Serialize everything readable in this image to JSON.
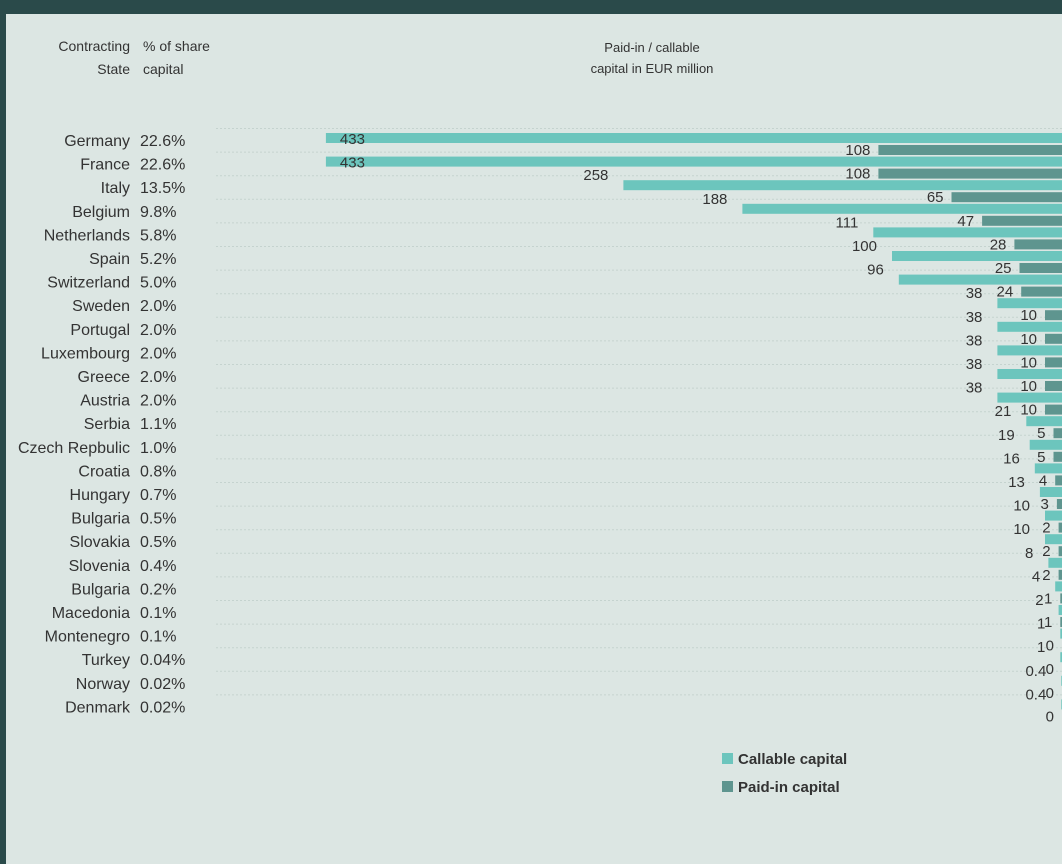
{
  "header": {
    "state_line1": "Contracting",
    "state_line2": "State",
    "share_line1": "% of share",
    "share_line2": "capital",
    "chart_line1": "Paid-in / callable",
    "chart_line2": "capital in EUR million"
  },
  "legend": {
    "callable": "Callable capital",
    "paidin": "Paid-in capital"
  },
  "colors": {
    "callable": "#6cc5bd",
    "paidin": "#5e958f",
    "background": "#dce6e3",
    "frame": "#2a4a4a"
  },
  "chart_data": {
    "type": "bar",
    "orientation": "horizontal",
    "direction": "right-to-left",
    "title": "Paid-in / callable capital in EUR million",
    "columns": [
      "Contracting State",
      "% of share capital"
    ],
    "categories": [
      "Germany",
      "France",
      "Italy",
      "Belgium",
      "Netherlands",
      "Spain",
      "Switzerland",
      "Sweden",
      "Portugal",
      "Luxembourg",
      "Greece",
      "Austria",
      "Serbia",
      "Czech Repbulic",
      "Croatia",
      "Hungary",
      "Bulgaria",
      "Slovakia",
      "Slovenia",
      "Bulgaria",
      "Macedonia",
      "Montenegro",
      "Turkey",
      "Norway",
      "Denmark"
    ],
    "share": [
      "22.6%",
      "22.6%",
      "13.5%",
      "9.8%",
      "5.8%",
      "5.2%",
      "5.0%",
      "2.0%",
      "2.0%",
      "2.0%",
      "2.0%",
      "2.0%",
      "1.1%",
      "1.0%",
      "0.8%",
      "0.7%",
      "0.5%",
      "0.5%",
      "0.4%",
      "0.2%",
      "0.1%",
      "0.1%",
      "0.04%",
      "0.02%",
      "0.02%"
    ],
    "series": [
      {
        "name": "Callable capital",
        "values": [
          433,
          433,
          258,
          188,
          111,
          100,
          96,
          38,
          38,
          38,
          38,
          38,
          21,
          19,
          16,
          13,
          10,
          10,
          8,
          4,
          2,
          1,
          1,
          0.4,
          0.4
        ],
        "labels": [
          "433",
          "433",
          "258",
          "188",
          "111",
          "100",
          "96",
          "38",
          "38",
          "38",
          "38",
          "38",
          "21",
          "19",
          "16",
          "13",
          "10",
          "10",
          "8",
          "4",
          "2",
          "1",
          "1",
          "0.4",
          "0.4"
        ]
      },
      {
        "name": "Paid-in capital",
        "values": [
          108,
          108,
          65,
          47,
          28,
          25,
          24,
          10,
          10,
          10,
          10,
          10,
          5,
          5,
          4,
          3,
          2,
          2,
          2,
          1,
          1,
          0,
          0,
          0,
          0
        ],
        "labels": [
          "108",
          "108",
          "65",
          "47",
          "28",
          "25",
          "24",
          "10",
          "10",
          "10",
          "10",
          "10",
          "5",
          "5",
          "4",
          "3",
          "2",
          "2",
          "2",
          "1",
          "1",
          "0",
          "0",
          "0",
          "0"
        ]
      }
    ],
    "legend_position": "bottom-right"
  }
}
